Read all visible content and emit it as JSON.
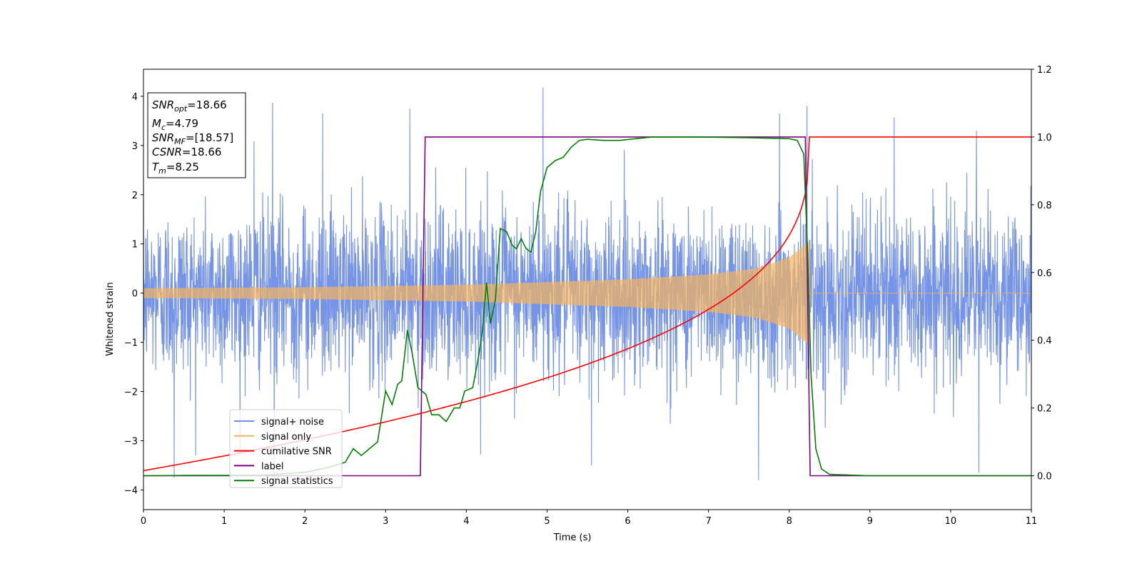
{
  "chart_data": {
    "type": "line",
    "xlabel": "Time (s)",
    "ylabel": "Whitened strain",
    "xlim": [
      0,
      11
    ],
    "ylim": [
      -4.4,
      4.55
    ],
    "y2lim": [
      -0.1,
      1.2
    ],
    "x_ticks": [
      0,
      1,
      2,
      3,
      4,
      5,
      6,
      7,
      8,
      9,
      10,
      11
    ],
    "y_ticks": [
      -4,
      -3,
      -2,
      -1,
      0,
      1,
      2,
      3,
      4
    ],
    "y2_ticks": [
      0.0,
      0.2,
      0.4,
      0.6,
      0.8,
      1.0,
      1.2
    ],
    "x_tick_labels": [
      "0",
      "1",
      "2",
      "3",
      "4",
      "5",
      "6",
      "7",
      "8",
      "9",
      "10",
      "11"
    ],
    "y_tick_labels": [
      "−4",
      "−3",
      "−2",
      "−1",
      "0",
      "1",
      "2",
      "3",
      "4"
    ],
    "y2_tick_labels": [
      "0.0",
      "0.2",
      "0.4",
      "0.6",
      "0.8",
      "1.0",
      "1.2"
    ],
    "grid": false,
    "legend_position": "lower-left",
    "series": [
      {
        "name": "signal+ noise",
        "axis": "left",
        "color": "#6f8ee6",
        "noise_std": 0.85,
        "peaks": [
          {
            "x": 0.38,
            "y": -3.75
          },
          {
            "x": 1.37,
            "y": 3.08
          },
          {
            "x": 1.6,
            "y": 3.87
          },
          {
            "x": 1.62,
            "y": -3.95
          },
          {
            "x": 2.22,
            "y": 3.65
          },
          {
            "x": 3.3,
            "y": 3.75
          },
          {
            "x": 4.95,
            "y": 4.18
          },
          {
            "x": 5.55,
            "y": -3.5
          },
          {
            "x": 7.62,
            "y": -3.8
          },
          {
            "x": 7.88,
            "y": 3.65
          },
          {
            "x": 8.22,
            "y": 3.8
          },
          {
            "x": 9.3,
            "y": 3.57
          },
          {
            "x": 10.32,
            "y": 3.3
          },
          {
            "x": 10.35,
            "y": -3.65
          }
        ]
      },
      {
        "name": "signal only",
        "axis": "left",
        "color": "#f5b35c",
        "envelope": [
          {
            "x": 0,
            "y": 0.1
          },
          {
            "x": 2,
            "y": 0.12
          },
          {
            "x": 4,
            "y": 0.17
          },
          {
            "x": 6,
            "y": 0.28
          },
          {
            "x": 7,
            "y": 0.38
          },
          {
            "x": 7.6,
            "y": 0.5
          },
          {
            "x": 8.0,
            "y": 0.72
          },
          {
            "x": 8.15,
            "y": 0.92
          },
          {
            "x": 8.25,
            "y": 1.05
          },
          {
            "x": 8.26,
            "y": 0
          },
          {
            "x": 11,
            "y": 0
          }
        ]
      },
      {
        "name": "cumilative SNR",
        "axis": "right",
        "color": "#ff0000",
        "tm": 8.25,
        "start": 0.015,
        "exponent": 0.35
      },
      {
        "name": "label",
        "axis": "right",
        "color": "#800080",
        "points": [
          {
            "x": 0,
            "y": 0
          },
          {
            "x": 3.43,
            "y": 0
          },
          {
            "x": 3.49,
            "y": 1.0
          },
          {
            "x": 8.2,
            "y": 1.0
          },
          {
            "x": 8.26,
            "y": 0
          },
          {
            "x": 11,
            "y": 0
          }
        ]
      },
      {
        "name": "signal statistics",
        "axis": "right",
        "color": "#008000",
        "points": [
          {
            "x": 0,
            "y": 0
          },
          {
            "x": 0.5,
            "y": 0.001
          },
          {
            "x": 1.0,
            "y": 0.001
          },
          {
            "x": 1.5,
            "y": 0.002
          },
          {
            "x": 2.0,
            "y": 0.01
          },
          {
            "x": 2.3,
            "y": 0.025
          },
          {
            "x": 2.5,
            "y": 0.04
          },
          {
            "x": 2.6,
            "y": 0.08
          },
          {
            "x": 2.7,
            "y": 0.06
          },
          {
            "x": 2.8,
            "y": 0.08
          },
          {
            "x": 2.9,
            "y": 0.1
          },
          {
            "x": 3.0,
            "y": 0.25
          },
          {
            "x": 3.08,
            "y": 0.21
          },
          {
            "x": 3.15,
            "y": 0.27
          },
          {
            "x": 3.2,
            "y": 0.28
          },
          {
            "x": 3.27,
            "y": 0.43
          },
          {
            "x": 3.33,
            "y": 0.36
          },
          {
            "x": 3.4,
            "y": 0.26
          },
          {
            "x": 3.5,
            "y": 0.24
          },
          {
            "x": 3.57,
            "y": 0.18
          },
          {
            "x": 3.66,
            "y": 0.18
          },
          {
            "x": 3.75,
            "y": 0.16
          },
          {
            "x": 3.85,
            "y": 0.2
          },
          {
            "x": 3.92,
            "y": 0.2
          },
          {
            "x": 3.98,
            "y": 0.25
          },
          {
            "x": 4.08,
            "y": 0.26
          },
          {
            "x": 4.15,
            "y": 0.35
          },
          {
            "x": 4.2,
            "y": 0.43
          },
          {
            "x": 4.25,
            "y": 0.57
          },
          {
            "x": 4.3,
            "y": 0.45
          },
          {
            "x": 4.36,
            "y": 0.52
          },
          {
            "x": 4.42,
            "y": 0.73
          },
          {
            "x": 4.5,
            "y": 0.72
          },
          {
            "x": 4.57,
            "y": 0.68
          },
          {
            "x": 4.62,
            "y": 0.67
          },
          {
            "x": 4.68,
            "y": 0.7
          },
          {
            "x": 4.74,
            "y": 0.67
          },
          {
            "x": 4.8,
            "y": 0.66
          },
          {
            "x": 4.86,
            "y": 0.72
          },
          {
            "x": 4.92,
            "y": 0.84
          },
          {
            "x": 5.0,
            "y": 0.91
          },
          {
            "x": 5.1,
            "y": 0.93
          },
          {
            "x": 5.2,
            "y": 0.94
          },
          {
            "x": 5.3,
            "y": 0.97
          },
          {
            "x": 5.4,
            "y": 0.99
          },
          {
            "x": 5.5,
            "y": 0.993
          },
          {
            "x": 5.7,
            "y": 0.99
          },
          {
            "x": 5.9,
            "y": 0.99
          },
          {
            "x": 6.1,
            "y": 0.995
          },
          {
            "x": 6.3,
            "y": 1.0
          },
          {
            "x": 6.8,
            "y": 1.0
          },
          {
            "x": 7.5,
            "y": 0.998
          },
          {
            "x": 8.0,
            "y": 0.995
          },
          {
            "x": 8.1,
            "y": 0.99
          },
          {
            "x": 8.18,
            "y": 0.95
          },
          {
            "x": 8.23,
            "y": 0.65
          },
          {
            "x": 8.27,
            "y": 0.3
          },
          {
            "x": 8.33,
            "y": 0.08
          },
          {
            "x": 8.4,
            "y": 0.02
          },
          {
            "x": 8.5,
            "y": 0.004
          },
          {
            "x": 9.0,
            "y": 0.0
          },
          {
            "x": 11,
            "y": 0.0
          }
        ]
      }
    ],
    "annotation": {
      "snr_opt": "18.66",
      "mc": "4.79",
      "snr_mf": "[18.57]",
      "csnr": "18.66",
      "tm": "8.25"
    }
  }
}
